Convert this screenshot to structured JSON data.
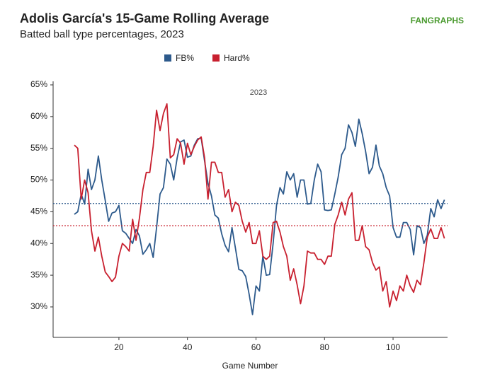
{
  "chart_data": {
    "type": "line",
    "title": "Adolis García's 15-Game Rolling Average",
    "subtitle": "Batted ball type percentages, 2023",
    "brand": "FANGRAPHS",
    "annotation": "2023",
    "xlabel": "Game Number",
    "x": [
      7,
      8,
      9,
      10,
      11,
      12,
      13,
      14,
      15,
      16,
      17,
      18,
      19,
      20,
      21,
      22,
      23,
      24,
      25,
      26,
      27,
      28,
      29,
      30,
      31,
      32,
      33,
      34,
      35,
      36,
      37,
      38,
      39,
      40,
      41,
      42,
      43,
      44,
      45,
      46,
      47,
      48,
      49,
      50,
      51,
      52,
      53,
      54,
      55,
      56,
      57,
      58,
      59,
      60,
      61,
      62,
      63,
      64,
      65,
      66,
      67,
      68,
      69,
      70,
      71,
      72,
      73,
      74,
      75,
      76,
      77,
      78,
      79,
      80,
      81,
      82,
      83,
      84,
      85,
      86,
      87,
      88,
      89,
      90,
      91,
      92,
      93,
      94,
      95,
      96,
      97,
      98,
      99,
      100,
      101,
      102,
      103,
      104,
      105,
      106,
      107,
      108,
      109,
      110,
      111,
      112,
      113,
      114,
      115
    ],
    "series": [
      {
        "name": "FB%",
        "color": "#2d5a8c",
        "mean": 46.3,
        "values": [
          44.6,
          45.0,
          47.8,
          46.2,
          51.7,
          48.5,
          50.0,
          53.8,
          50.0,
          46.8,
          43.5,
          44.8,
          45.0,
          46.0,
          42.0,
          41.6,
          40.8,
          40.0,
          42.2,
          41.2,
          38.3,
          39.0,
          40.0,
          37.8,
          42.5,
          47.8,
          48.8,
          53.3,
          52.5,
          50.0,
          53.5,
          56.0,
          56.3,
          53.6,
          53.8,
          55.5,
          56.5,
          56.6,
          53.0,
          49.5,
          47.5,
          44.5,
          44.0,
          41.5,
          39.7,
          38.7,
          42.5,
          39.3,
          35.9,
          35.7,
          34.8,
          32.0,
          28.8,
          33.3,
          32.5,
          38.0,
          35.0,
          35.1,
          40.0,
          46.0,
          48.8,
          47.8,
          51.3,
          50.0,
          51.0,
          47.3,
          50.0,
          50.0,
          46.2,
          46.3,
          50.0,
          52.5,
          51.3,
          45.3,
          45.2,
          45.3,
          47.8,
          50.5,
          54.0,
          55.0,
          58.7,
          57.5,
          55.3,
          59.6,
          57.3,
          54.5,
          51.0,
          52.0,
          55.5,
          52.2,
          51.0,
          48.8,
          47.5,
          42.5,
          41.0,
          41.0,
          43.3,
          43.3,
          42.2,
          38.2,
          42.8,
          42.5,
          40.0,
          41.3,
          45.5,
          44.2,
          46.9,
          45.5,
          46.9
        ]
      },
      {
        "name": "Hard%",
        "color": "#c8202f",
        "mean": 42.8,
        "values": [
          55.5,
          55.0,
          47.0,
          50.0,
          48.0,
          42.0,
          38.8,
          41.0,
          38.0,
          35.5,
          34.8,
          34.0,
          34.7,
          38.0,
          40.0,
          39.5,
          38.8,
          43.8,
          40.5,
          44.0,
          48.5,
          51.2,
          51.2,
          55.3,
          61.0,
          57.8,
          60.5,
          62.0,
          53.5,
          54.0,
          56.5,
          55.8,
          52.5,
          55.8,
          54.0,
          55.3,
          56.3,
          56.8,
          53.5,
          47.0,
          52.8,
          52.8,
          51.2,
          51.2,
          47.3,
          48.5,
          45.0,
          46.5,
          46.0,
          43.5,
          41.8,
          43.3,
          40.0,
          40.0,
          42.0,
          38.0,
          37.5,
          38.0,
          43.3,
          43.5,
          41.8,
          39.5,
          38.0,
          34.2,
          36.0,
          33.5,
          30.5,
          33.3,
          38.8,
          38.5,
          38.5,
          37.5,
          37.5,
          36.7,
          38.0,
          38.0,
          43.0,
          44.5,
          46.5,
          44.5,
          47.0,
          48.0,
          40.5,
          40.5,
          42.8,
          39.5,
          39.0,
          37.0,
          35.8,
          36.3,
          32.5,
          34.0,
          30.0,
          32.5,
          31.0,
          33.3,
          32.5,
          35.0,
          33.3,
          32.3,
          34.2,
          33.5,
          37.0,
          41.0,
          42.3,
          40.8,
          40.8,
          42.5,
          40.8
        ]
      }
    ],
    "xlim": [
      0.8,
      115.9
    ],
    "xticks": [
      20,
      40,
      60,
      80,
      100
    ],
    "ylim": [
      25.2,
      65
    ],
    "yticks": [
      {
        "value": 30,
        "label": "30%"
      },
      {
        "value": 35,
        "label": "35%"
      },
      {
        "value": 40,
        "label": "40%"
      },
      {
        "value": 45,
        "label": "45%"
      },
      {
        "value": 50,
        "label": "50%"
      },
      {
        "value": 55,
        "label": "55%"
      },
      {
        "value": 60,
        "label": "60%"
      },
      {
        "value": 65,
        "label": "65%"
      }
    ],
    "grid": false,
    "legend": "top"
  }
}
